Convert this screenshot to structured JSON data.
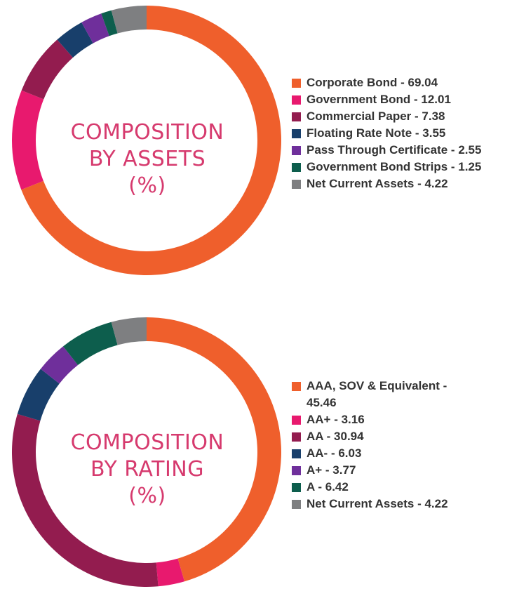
{
  "chart_data": [
    {
      "type": "pie",
      "title_lines": [
        "COMPOSITION",
        "BY ASSETS",
        "(%)"
      ],
      "categories": [
        "Corporate Bond",
        "Government Bond",
        "Commercial Paper",
        "Floating Rate Note",
        "Pass Through Certificate",
        "Government Bond Strips",
        "Net Current Assets"
      ],
      "values": [
        69.04,
        12.01,
        7.38,
        3.55,
        2.55,
        1.25,
        4.22
      ],
      "legend_labels": [
        "Corporate Bond - 69.04",
        "Government Bond - 12.01",
        "Commercial Paper - 7.38",
        "Floating Rate Note - 3.55",
        "Pass Through Certificate - 2.55",
        "Government Bond Strips - 1.25",
        "Net Current Assets - 4.22"
      ],
      "colors": [
        "#ef5f2c",
        "#e8196e",
        "#931c4f",
        "#183f6b",
        "#6f2f9b",
        "#0d5e4d",
        "#7e7f81"
      ]
    },
    {
      "type": "pie",
      "title_lines": [
        "COMPOSITION",
        "BY RATING",
        "(%)"
      ],
      "categories": [
        "AAA, SOV & Equivalent",
        "AA+",
        "AA",
        "AA-",
        "A+",
        "A",
        "Net Current Assets"
      ],
      "values": [
        45.46,
        3.16,
        30.94,
        6.03,
        3.77,
        6.42,
        4.22
      ],
      "legend_labels": [
        "AAA, SOV & Equivalent - 45.46",
        "AA+ - 3.16",
        "AA - 30.94",
        "AA- - 6.03",
        "A+ - 3.77",
        "A - 6.42",
        "Net Current Assets - 4.22"
      ],
      "colors": [
        "#ef5f2c",
        "#e8196e",
        "#931c4f",
        "#183f6b",
        "#6f2f9b",
        "#0d5e4d",
        "#7e7f81"
      ]
    }
  ]
}
